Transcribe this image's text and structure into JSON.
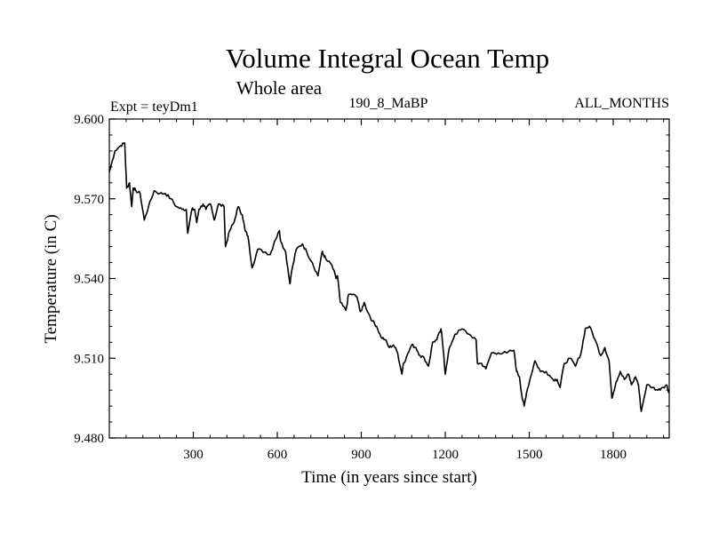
{
  "chart_data": {
    "type": "line",
    "title": "Volume Integral Ocean Temp",
    "subtitle": "Whole area",
    "left_label": "Expt = teyDm1",
    "center_label": "190_8_MaBP",
    "right_label": "ALL_MONTHS",
    "xlabel": "Time (in years since start)",
    "ylabel": "Temperature (in C)",
    "xlim": [
      0,
      2000
    ],
    "ylim": [
      9.48,
      9.6
    ],
    "x_ticks": [
      300,
      600,
      900,
      1200,
      1500,
      1800
    ],
    "x_tick_labels": [
      "300",
      "600",
      "900",
      "1200",
      "1500",
      "1800"
    ],
    "y_ticks": [
      9.48,
      9.51,
      9.54,
      9.57,
      9.6
    ],
    "y_tick_labels": [
      "9.480",
      "9.510",
      "9.540",
      "9.570",
      "9.600"
    ],
    "grid": false,
    "series": [
      {
        "name": "Volume Integral Ocean Temp",
        "x": [
          0,
          20,
          40,
          55,
          62,
          72,
          80,
          85,
          95,
          110,
          125,
          140,
          160,
          180,
          200,
          220,
          240,
          260,
          275,
          280,
          295,
          305,
          312,
          320,
          335,
          345,
          360,
          365,
          375,
          390,
          410,
          415,
          430,
          445,
          460,
          475,
          485,
          495,
          510,
          530,
          555,
          575,
          590,
          608,
          612,
          630,
          645,
          650,
          668,
          690,
          705,
          725,
          745,
          760,
          765,
          775,
          795,
          810,
          815,
          825,
          845,
          855,
          870,
          885,
          895,
          902,
          910,
          925,
          940,
          955,
          970,
          985,
          1000,
          1015,
          1030,
          1045,
          1050,
          1060,
          1080,
          1095,
          1110,
          1125,
          1140,
          1155,
          1170,
          1185,
          1195,
          1200,
          1215,
          1235,
          1260,
          1285,
          1310,
          1315,
          1330,
          1345,
          1365,
          1390,
          1420,
          1445,
          1455,
          1465,
          1475,
          1482,
          1490,
          1505,
          1520,
          1540,
          1560,
          1585,
          1600,
          1610,
          1625,
          1645,
          1665,
          1685,
          1700,
          1715,
          1735,
          1755,
          1770,
          1785,
          1795,
          1800,
          1810,
          1825,
          1840,
          1855,
          1865,
          1880,
          1890,
          1900,
          1920,
          1940,
          1960,
          1975,
          1990,
          2000
        ],
        "y": [
          9.58,
          9.588,
          9.59,
          9.591,
          9.574,
          9.576,
          9.567,
          9.574,
          9.573,
          9.572,
          9.562,
          9.567,
          9.573,
          9.572,
          9.572,
          9.57,
          9.567,
          9.566,
          9.566,
          9.557,
          9.566,
          9.566,
          9.561,
          9.566,
          9.568,
          9.566,
          9.568,
          9.567,
          9.562,
          9.568,
          9.567,
          9.552,
          9.558,
          9.561,
          9.567,
          9.564,
          9.558,
          9.556,
          9.544,
          9.551,
          9.55,
          9.549,
          9.554,
          9.558,
          9.554,
          9.55,
          9.538,
          9.542,
          9.551,
          9.553,
          9.55,
          9.546,
          9.541,
          9.55,
          9.549,
          9.547,
          9.545,
          9.54,
          9.541,
          9.531,
          9.528,
          9.534,
          9.534,
          9.533,
          9.528,
          9.528,
          9.531,
          9.527,
          9.524,
          9.522,
          9.518,
          9.517,
          9.514,
          9.515,
          9.512,
          9.504,
          9.508,
          9.51,
          9.515,
          9.514,
          9.511,
          9.51,
          9.507,
          9.516,
          9.517,
          9.521,
          9.511,
          9.504,
          9.514,
          9.519,
          9.521,
          9.519,
          9.517,
          9.508,
          9.508,
          9.506,
          9.512,
          9.512,
          9.512,
          9.513,
          9.505,
          9.503,
          9.495,
          9.492,
          9.497,
          9.503,
          9.509,
          9.505,
          9.505,
          9.502,
          9.502,
          9.499,
          9.508,
          9.51,
          9.507,
          9.512,
          9.521,
          9.522,
          9.517,
          9.511,
          9.514,
          9.509,
          9.495,
          9.497,
          9.501,
          9.505,
          9.502,
          9.504,
          9.5,
          9.503,
          9.5,
          9.49,
          9.5,
          9.499,
          9.498,
          9.499,
          9.5,
          9.497
        ]
      }
    ]
  }
}
